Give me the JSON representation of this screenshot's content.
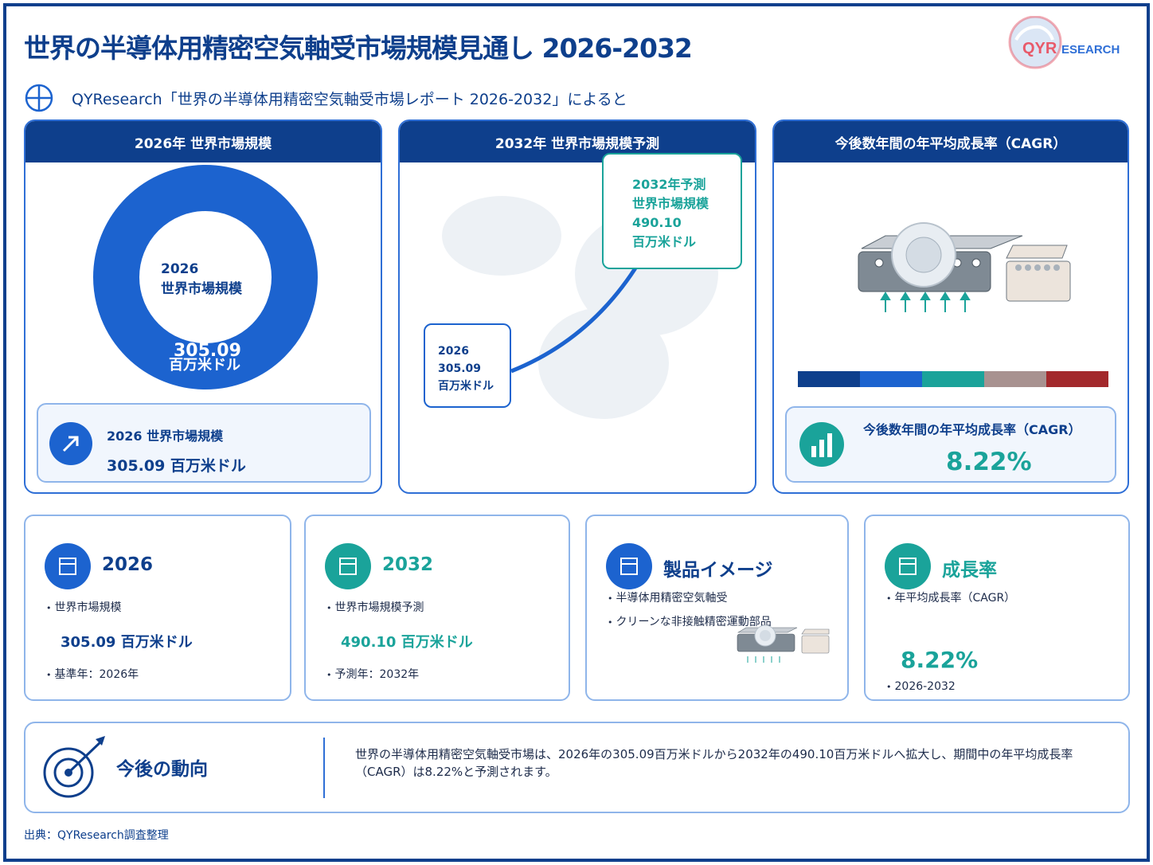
{
  "title": "世界の半導体用精密空気軸受市場規模見通し 2026-2032",
  "logo": {
    "brand_prefix": "QYR",
    "brand_suffix": "ESEARCH"
  },
  "subtitle": "QYResearch「世界の半導体用精密空気軸受市場レポート 2026-2032」によると",
  "colors": {
    "navy": "#0e3f8c",
    "blue": "#1c63cf",
    "teal": "#1aa39a",
    "gray": "#a89290",
    "red": "#a3292c"
  },
  "panel_2026": {
    "header": "2026年 世界市場規模",
    "donut_label_line1": "2026",
    "donut_label_line2": "世界市場規模",
    "donut_value": "305.09",
    "donut_unit": "百万米ドル",
    "box_label": "2026 世界市場規模",
    "box_value": "305.09 百万米ドル",
    "icon": "arrow-up-right-icon"
  },
  "panel_2032": {
    "header": "2032年 世界市場規模予測",
    "start_callout": [
      "2026",
      "305.09",
      "百万米ドル"
    ],
    "end_callout": [
      "2032年予測",
      "世界市場規模",
      "490.10",
      "百万米ドル"
    ]
  },
  "panel_cagr": {
    "header": "今後数年間の年平均成長率（CAGR）",
    "box_label": "今後数年間の年平均成長率（CAGR）",
    "box_value": "8.22%",
    "icon": "bar-chart-icon"
  },
  "cards": [
    {
      "title": "2026",
      "bullet1": "世界市場規模",
      "value": "305.09 百万米ドル",
      "bullet2": "基準年：2026年"
    },
    {
      "title": "2032",
      "bullet1": "世界市場規模予測",
      "value": "490.10 百万米ドル",
      "bullet2": "予測年：2032年"
    },
    {
      "title": "製品イメージ",
      "bullet1": "半導体用精密空気軸受",
      "bullet2": "クリーンな非接触精密運動部品"
    },
    {
      "title": "成長率",
      "bullet1": "年平均成長率（CAGR）",
      "value": "8.22%",
      "bullet2": "2026-2032"
    }
  ],
  "trend": {
    "title": "今後の動向",
    "text": "世界の半導体用精密空気軸受市場は、2026年の305.09百万米ドルから2032年の490.10百万米ドルへ拡大し、期間中の年平均成長率（CAGR）は8.22%と予測されます。"
  },
  "source": "出典：QYResearch調査整理"
}
